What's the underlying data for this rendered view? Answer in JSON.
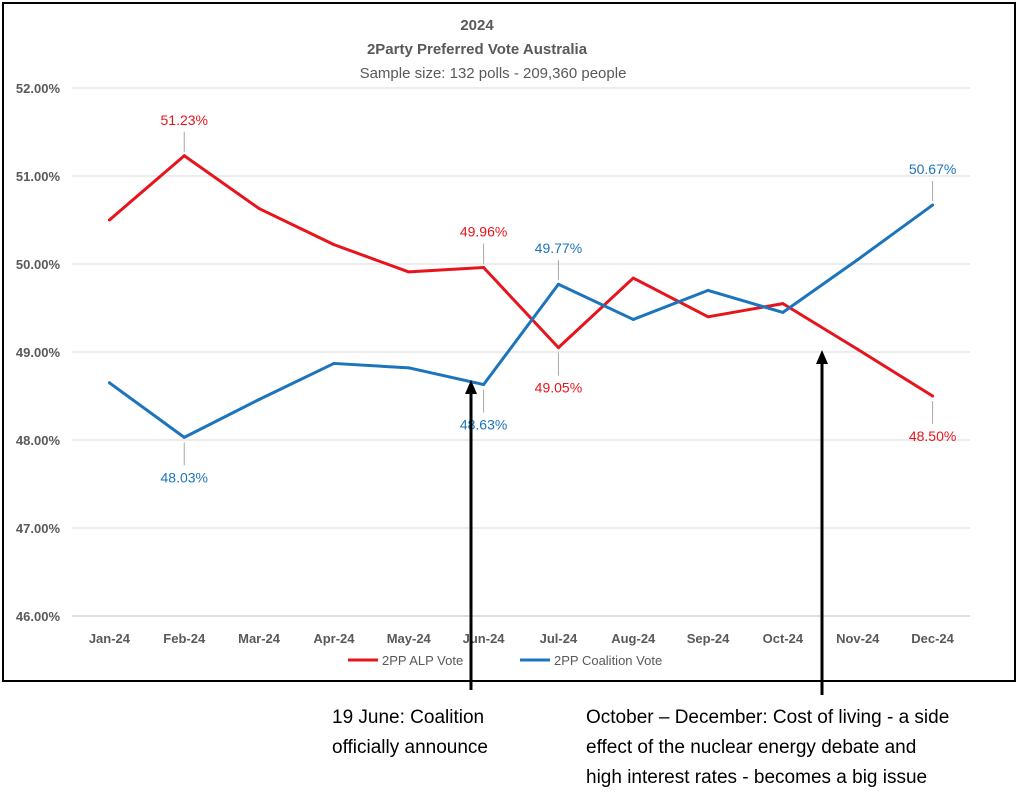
{
  "chart_data": {
    "type": "line",
    "title": "2024",
    "subtitle": "2Party Preferred Vote Australia",
    "subtitle2": "Sample size: 132 polls - 209,360 people",
    "categories": [
      "Jan-24",
      "Feb-24",
      "Mar-24",
      "Apr-24",
      "May-24",
      "Jun-24",
      "Jul-24",
      "Aug-24",
      "Sep-24",
      "Oct-24",
      "Nov-24",
      "Dec-24"
    ],
    "ylim": [
      46,
      52
    ],
    "yticks": [
      46,
      47,
      48,
      49,
      50,
      51,
      52
    ],
    "ytick_labels": [
      "46.00%",
      "47.00%",
      "48.00%",
      "49.00%",
      "50.00%",
      "51.00%",
      "52.00%"
    ],
    "grid": true,
    "legend_position": "bottom",
    "series": [
      {
        "name": "2PP ALP Vote",
        "color": "#e8141c",
        "values": [
          50.5,
          51.23,
          50.63,
          50.22,
          49.91,
          49.96,
          49.05,
          49.84,
          49.4,
          49.55,
          49.03,
          48.5
        ]
      },
      {
        "name": "2PP Coalition Vote",
        "color": "#1c75bc",
        "values": [
          48.65,
          48.03,
          48.46,
          48.87,
          48.82,
          48.63,
          49.77,
          49.37,
          49.7,
          49.45,
          50.05,
          50.67
        ]
      }
    ],
    "data_labels": [
      {
        "series": 0,
        "index": 1,
        "text": "51.23%",
        "side": "above"
      },
      {
        "series": 0,
        "index": 5,
        "text": "49.96%",
        "side": "above"
      },
      {
        "series": 0,
        "index": 6,
        "text": "49.05%",
        "side": "below"
      },
      {
        "series": 0,
        "index": 11,
        "text": "48.50%",
        "side": "below"
      },
      {
        "series": 1,
        "index": 1,
        "text": "48.03%",
        "side": "below"
      },
      {
        "series": 1,
        "index": 5,
        "text": "48.63%",
        "side": "below"
      },
      {
        "series": 1,
        "index": 6,
        "text": "49.77%",
        "side": "above"
      },
      {
        "series": 1,
        "index": 11,
        "text": "50.67%",
        "side": "above"
      }
    ]
  },
  "annotations": [
    {
      "text": "19 June: Coalition\nofficially announce",
      "arrow_at_month": "Jun-24"
    },
    {
      "text": "October – December: Cost of living - a side\neffect of the nuclear energy debate and\nhigh interest rates - becomes a big issue",
      "arrow_at_month": "Oct-24"
    }
  ]
}
